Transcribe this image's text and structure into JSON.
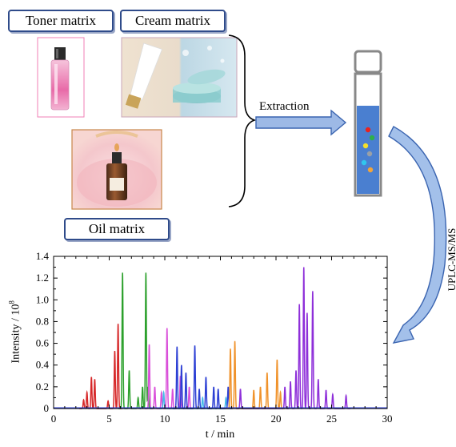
{
  "labels": {
    "toner": "Toner matrix",
    "cream": "Cream matrix",
    "oil": "Oil matrix",
    "extraction": "Extraction",
    "uplc": "UPLC-MS/MS"
  },
  "icons": {
    "toner_photo": "toner-bottle-photo",
    "cream_photo": "cream-tube-and-jar-photo",
    "oil_photo": "oil-dropper-bottle-photo",
    "vial": "extraction-vial-icon"
  },
  "colors": {
    "label_border": "#2f4b8a",
    "arrow_fill": "#9db9e6",
    "arrow_stroke": "#3a64b0",
    "vial_liquid": "#4a7fd0"
  },
  "vial_dots": [
    "#e8231f",
    "#2fb04a",
    "#f4e02a",
    "#9aa0a6",
    "#30c6ee",
    "#f2a43a"
  ],
  "chart_data": {
    "type": "line",
    "title": "",
    "xlabel": "t / min",
    "ylabel": "Intensity / 10",
    "ylabel_sup": "8",
    "xlim": [
      0,
      30
    ],
    "ylim": [
      0,
      1.4
    ],
    "xticks": [
      "0",
      "5",
      "10",
      "15",
      "20",
      "25",
      "30"
    ],
    "yticks": [
      "0",
      "0.2",
      "0.4",
      "0.6",
      "0.8",
      "1.0",
      "1.2",
      "1.4"
    ],
    "series": [
      {
        "color": "#d62728",
        "peaks": [
          [
            2.7,
            0.08
          ],
          [
            3.0,
            0.15
          ],
          [
            3.4,
            0.29
          ],
          [
            3.7,
            0.27
          ],
          [
            4.9,
            0.07
          ],
          [
            5.5,
            0.53
          ],
          [
            5.8,
            0.78
          ]
        ]
      },
      {
        "color": "#2ca02c",
        "peaks": [
          [
            6.2,
            1.25
          ],
          [
            6.8,
            0.35
          ],
          [
            7.6,
            0.1
          ],
          [
            8.0,
            0.2
          ],
          [
            8.3,
            1.25
          ],
          [
            8.5,
            0.2
          ]
        ]
      },
      {
        "color": "#d94fd9",
        "peaks": [
          [
            8.6,
            0.59
          ],
          [
            9.1,
            0.2
          ],
          [
            9.7,
            0.15
          ],
          [
            10.2,
            0.74
          ],
          [
            10.7,
            0.18
          ],
          [
            11.4,
            0.3
          ],
          [
            12.2,
            0.2
          ]
        ]
      },
      {
        "color": "#45b8e8",
        "peaks": [
          [
            9.9,
            0.15
          ],
          [
            13.4,
            0.1
          ],
          [
            15.5,
            0.1
          ]
        ]
      },
      {
        "color": "#2c3fd4",
        "peaks": [
          [
            11.1,
            0.57
          ],
          [
            11.5,
            0.4
          ],
          [
            11.9,
            0.33
          ],
          [
            12.7,
            0.58
          ],
          [
            13.1,
            0.18
          ],
          [
            13.7,
            0.29
          ],
          [
            14.4,
            0.2
          ],
          [
            14.8,
            0.18
          ],
          [
            15.7,
            0.2
          ]
        ]
      },
      {
        "color": "#f0922a",
        "peaks": [
          [
            15.9,
            0.55
          ],
          [
            16.3,
            0.62
          ],
          [
            18.0,
            0.17
          ],
          [
            18.6,
            0.2
          ],
          [
            19.2,
            0.33
          ],
          [
            20.1,
            0.45
          ],
          [
            20.4,
            0.15
          ]
        ]
      },
      {
        "color": "#8e2fd9",
        "peaks": [
          [
            16.8,
            0.18
          ],
          [
            20.8,
            0.2
          ],
          [
            21.3,
            0.25
          ],
          [
            21.8,
            0.35
          ],
          [
            22.1,
            0.96
          ],
          [
            22.5,
            1.3
          ],
          [
            22.8,
            0.88
          ],
          [
            23.3,
            1.08
          ],
          [
            23.8,
            0.27
          ],
          [
            24.5,
            0.17
          ],
          [
            25.1,
            0.13
          ],
          [
            26.3,
            0.12
          ]
        ]
      }
    ]
  }
}
